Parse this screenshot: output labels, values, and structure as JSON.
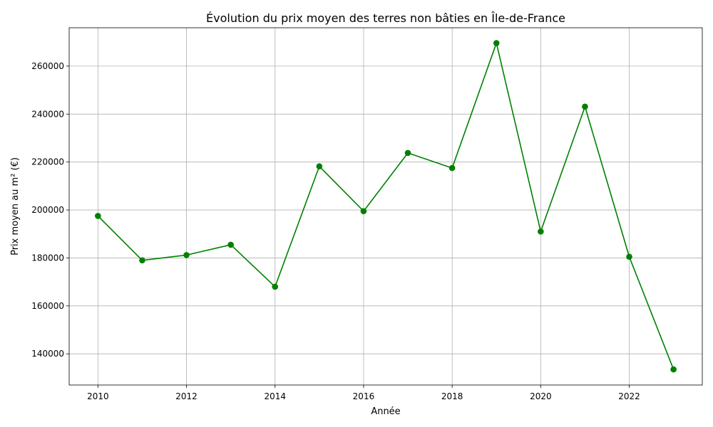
{
  "chart_data": {
    "type": "line",
    "title": "Évolution du prix moyen des terres non bâties en Île-de-France",
    "xlabel": "Année",
    "ylabel": "Prix moyen au m² (€)",
    "xlim": [
      2009.35,
      2023.65
    ],
    "ylim": [
      127000,
      276000
    ],
    "xticks": [
      2010,
      2012,
      2014,
      2016,
      2018,
      2020,
      2022
    ],
    "yticks": [
      140000,
      160000,
      180000,
      200000,
      220000,
      240000,
      260000
    ],
    "grid": true,
    "legend": "none",
    "series": [
      {
        "color": "#008000",
        "marker": "circle",
        "x": [
          2010,
          2011,
          2012,
          2013,
          2014,
          2015,
          2016,
          2017,
          2018,
          2019,
          2020,
          2021,
          2022,
          2023
        ],
        "y": [
          197500,
          179000,
          181200,
          185500,
          168000,
          218200,
          199500,
          223800,
          217500,
          269600,
          191000,
          243100,
          180500,
          133500
        ]
      }
    ]
  }
}
